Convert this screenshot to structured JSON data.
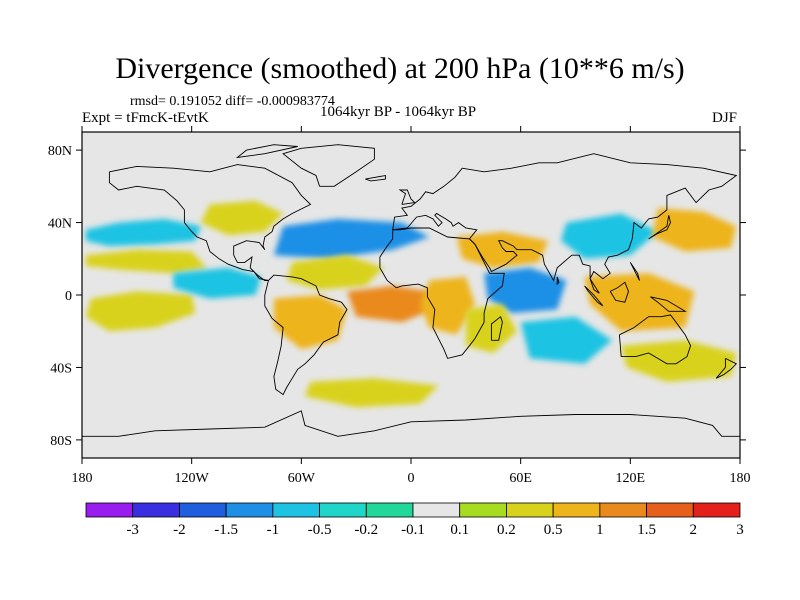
{
  "title": "Divergence (smoothed) at 200 hPa (10**6 m/s)",
  "stats": "rmsd= 0.191052 diff= -0.000983774",
  "experiment": "Expt = tFmcK-tEvtK",
  "period": "1064kyr BP - 1064kyr BP",
  "season": "DJF",
  "map": {
    "projection": "cylindrical-equidistant",
    "lon_range": [
      -180,
      180
    ],
    "lat_range": [
      -90,
      90
    ],
    "lon_ticks": [
      {
        "value": -180,
        "label": "180"
      },
      {
        "value": -120,
        "label": "120W"
      },
      {
        "value": -60,
        "label": "60W"
      },
      {
        "value": 0,
        "label": "0"
      },
      {
        "value": 60,
        "label": "60E"
      },
      {
        "value": 120,
        "label": "120E"
      },
      {
        "value": 180,
        "label": "180"
      }
    ],
    "lat_ticks": [
      {
        "value": 80,
        "label": "80N"
      },
      {
        "value": 40,
        "label": "40N"
      },
      {
        "value": 0,
        "label": "0"
      },
      {
        "value": -40,
        "label": "40S"
      },
      {
        "value": -80,
        "label": "80S"
      }
    ],
    "background_color": "#e6e6e6"
  },
  "colorbar": {
    "labels": [
      "-3",
      "-2",
      "-1.5",
      "-1",
      "-0.5",
      "-0.2",
      "-0.1",
      "0.1",
      "0.2",
      "0.5",
      "1",
      "1.5",
      "2",
      "3"
    ],
    "colors": [
      "#9a1df0",
      "#3a2fe0",
      "#1f5fdd",
      "#1f8fe6",
      "#1ec3e3",
      "#20d6c9",
      "#22d79a",
      "#e6e6e6",
      "#a8dc21",
      "#d9d21c",
      "#eeb41c",
      "#ea8a1c",
      "#e6601c",
      "#e3201c"
    ]
  },
  "chart_data": {
    "type": "heatmap",
    "variable": "Divergence (smoothed) at 200 hPa",
    "units": "10**6 m/s",
    "levels": [
      -3,
      -2,
      -1.5,
      -1,
      -0.5,
      -0.2,
      -0.1,
      0.1,
      0.2,
      0.5,
      1,
      1.5,
      2,
      3
    ],
    "regions": [
      {
        "name": "north-pacific-teal",
        "lon": -150,
        "lat": 33,
        "value": -0.3
      },
      {
        "name": "north-pacific-green",
        "lon": -128,
        "lat": 22,
        "value": 0.2
      },
      {
        "name": "tropical-pacific-green",
        "lon": -150,
        "lat": -8,
        "value": 0.3
      },
      {
        "name": "ne-pacific-teal",
        "lon": -105,
        "lat": 5,
        "value": -0.3
      },
      {
        "name": "us-green",
        "lon": -95,
        "lat": 42,
        "value": 0.2
      },
      {
        "name": "atlantic-band-teal",
        "lon": -50,
        "lat": 30,
        "value": -0.5
      },
      {
        "name": "mid-atlantic-yellow",
        "lon": -40,
        "lat": 10,
        "value": 0.3
      },
      {
        "name": "south-america-orange",
        "lon": -55,
        "lat": -15,
        "value": 0.6
      },
      {
        "name": "equatorial-atlantic-orange",
        "lon": -10,
        "lat": -5,
        "value": 1.2
      },
      {
        "name": "central-africa-yellow",
        "lon": 20,
        "lat": -5,
        "value": 0.5
      },
      {
        "name": "north-africa-yellow",
        "lon": 45,
        "lat": 25,
        "value": 0.5
      },
      {
        "name": "arabian-sea-blue",
        "lon": 55,
        "lat": 0,
        "value": -0.8
      },
      {
        "name": "east-africa-yellow",
        "lon": 40,
        "lat": -15,
        "value": 0.3
      },
      {
        "name": "indian-ocean-teal",
        "lon": 75,
        "lat": -25,
        "value": -0.2
      },
      {
        "name": "maritime-continent-orange",
        "lon": 120,
        "lat": -5,
        "value": 0.8
      },
      {
        "name": "east-asia-teal",
        "lon": 110,
        "lat": 30,
        "value": -0.3
      },
      {
        "name": "nw-pacific-orange",
        "lon": 150,
        "lat": 35,
        "value": 0.7
      },
      {
        "name": "south-pacific-yellow",
        "lon": 140,
        "lat": -35,
        "value": 0.3
      },
      {
        "name": "southern-ocean-green",
        "lon": -20,
        "lat": -55,
        "value": 0.2
      }
    ]
  }
}
